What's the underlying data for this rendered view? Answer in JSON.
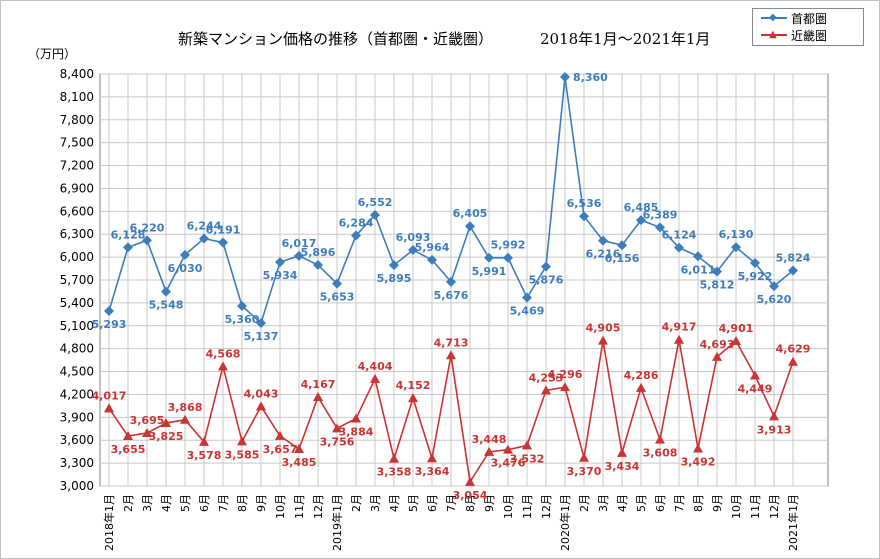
{
  "title": "新築マンション価格の推移（首都圏・近畿圏）",
  "period": "2018年1月～2021年1月",
  "legend": {
    "shutoken": "首都圏",
    "kinki": "近畿圏"
  },
  "colors": {
    "shutoken": "#3d7dbb",
    "kinki": "#cc3333",
    "grid": "#c8c8c8"
  },
  "chart_data": {
    "type": "line",
    "title": "新築マンション価格の推移（首都圏・近畿圏）",
    "subtitle": "2018年1月～2021年1月",
    "ylabel": "（万円）",
    "xlabel": "",
    "ylim": [
      3000,
      8400
    ],
    "yticks": [
      3000,
      3300,
      3600,
      3900,
      4200,
      4500,
      4800,
      5100,
      5400,
      5700,
      6000,
      6300,
      6600,
      6900,
      7200,
      7500,
      7800,
      8100,
      8400
    ],
    "ytick_labels": [
      "3,000",
      "3,300",
      "3,600",
      "3,900",
      "4,200",
      "4,500",
      "4,800",
      "5,100",
      "5,400",
      "5,700",
      "6,000",
      "6,300",
      "6,600",
      "6,900",
      "7,200",
      "7,500",
      "7,800",
      "8,100",
      "8,400"
    ],
    "categories": [
      "2018年1月",
      "2月",
      "3月",
      "4月",
      "5月",
      "6月",
      "7月",
      "8月",
      "9月",
      "10月",
      "11月",
      "12月",
      "2019年1月",
      "2月",
      "3月",
      "4月",
      "5月",
      "6月",
      "7月",
      "8月",
      "9月",
      "10月",
      "11月",
      "12月",
      "2020年1月",
      "2月",
      "3月",
      "4月",
      "5月",
      "6月",
      "7月",
      "8月",
      "9月",
      "10月",
      "11月",
      "12月",
      "2021年1月"
    ],
    "legend_position": "top-right",
    "grid": true,
    "series": [
      {
        "name": "首都圏",
        "marker": "diamond",
        "values": [
          5293,
          6128,
          6220,
          5548,
          6030,
          6244,
          6191,
          5360,
          5137,
          5934,
          6017,
          5896,
          5653,
          6284,
          6552,
          5895,
          6093,
          5964,
          5676,
          6405,
          5991,
          5992,
          5469,
          5876,
          8360,
          6536,
          6216,
          6156,
          6485,
          6389,
          6124,
          6011,
          5812,
          6130,
          5922,
          5620,
          5824
        ],
        "labels": [
          "5,293",
          "6,128",
          "6,220",
          "5,548",
          "6,030",
          "6,244",
          "6,191",
          "5,360",
          "5,137",
          "5,934",
          "6,017",
          "5,896",
          "5,653",
          "6,284",
          "6,552",
          "5,895",
          "6,093",
          "5,964",
          "5,676",
          "6,405",
          "5,991",
          "5,992",
          "5,469",
          "5,876",
          "8,360",
          "6,536",
          "6,216",
          "6,156",
          "6,485",
          "6,389",
          "6,124",
          "6,011",
          "5,812",
          "6,130",
          "5,922",
          "5,620",
          "5,824"
        ]
      },
      {
        "name": "近畿圏",
        "marker": "triangle",
        "values": [
          4017,
          3655,
          3695,
          3825,
          3868,
          3578,
          4568,
          3585,
          4043,
          3657,
          3485,
          4167,
          3756,
          3884,
          4404,
          3358,
          4152,
          3364,
          4713,
          3054,
          3448,
          3476,
          3532,
          4253,
          4296,
          3370,
          4905,
          3434,
          4286,
          3608,
          4917,
          3492,
          4693,
          4901,
          4449,
          3913,
          4629
        ],
        "labels": [
          "4,017",
          "3,655",
          "3,695",
          "3,825",
          "3,868",
          "3,578",
          "4,568",
          "3,585",
          "4,043",
          "3,657",
          "3,485",
          "4,167",
          "3,756",
          "3,884",
          "4,404",
          "3,358",
          "4,152",
          "3,364",
          "4,713",
          "3,054",
          "3,448",
          "3,476",
          "3,532",
          "4,253",
          "4,296",
          "3,370",
          "4,905",
          "3,434",
          "4,286",
          "3,608",
          "4,917",
          "3,492",
          "4,693",
          "4,901",
          "4,449",
          "3,913",
          "4,629"
        ]
      }
    ]
  }
}
